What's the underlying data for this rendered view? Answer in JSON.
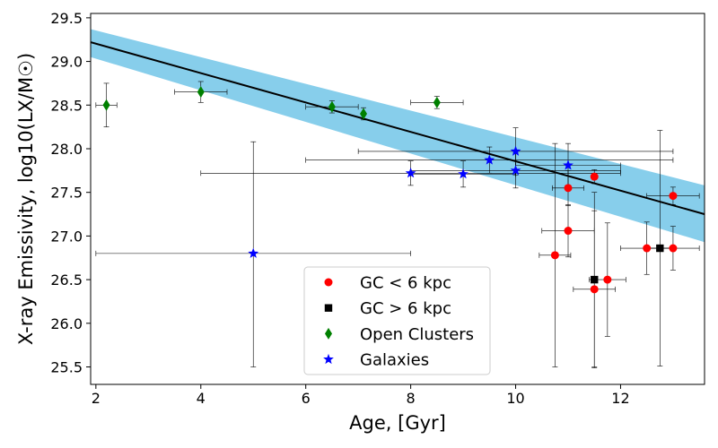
{
  "chart_data": {
    "type": "scatter",
    "title": "",
    "xlabel": "Age, [Gyr]",
    "ylabel": "X-ray Emissivity, log10(LX/M☉)",
    "xlim": [
      1.9,
      13.6
    ],
    "ylim": [
      25.3,
      29.55
    ],
    "xticks": [
      "2",
      "4",
      "6",
      "8",
      "10",
      "12"
    ],
    "yticks": [
      "25.5",
      "26.0",
      "26.5",
      "27.0",
      "27.5",
      "28.0",
      "28.5",
      "29.0",
      "29.5"
    ],
    "fit_line": {
      "x": [
        1.9,
        13.6
      ],
      "y": [
        29.22,
        27.25
      ]
    },
    "fit_band": {
      "x": [
        1.9,
        13.6
      ],
      "upper": [
        29.37,
        27.58
      ],
      "lower": [
        29.05,
        26.93
      ],
      "color": "#87ceeb"
    },
    "legend_position": "lower-center",
    "series": [
      {
        "name": "GC < 6 kpc",
        "marker": "circle",
        "color": "#ff0000",
        "points": [
          {
            "x": 10.75,
            "y": 26.78,
            "xerr": [
              0.3,
              0.3
            ],
            "yerr": [
              1.28,
              1.28
            ]
          },
          {
            "x": 11.0,
            "y": 27.55,
            "xerr": [
              0.3,
              0.3
            ],
            "yerr": [
              0.2,
              0.2
            ]
          },
          {
            "x": 11.0,
            "y": 27.06,
            "xerr": [
              0.5,
              0.5
            ],
            "yerr": [
              0.3,
              0.3
            ]
          },
          {
            "x": 11.5,
            "y": 27.68,
            "xerr": [
              0.0,
              0.0
            ],
            "yerr": [
              0.08,
              0.08
            ]
          },
          {
            "x": 11.5,
            "y": 26.39,
            "xerr": [
              0.4,
              0.4
            ],
            "yerr": [
              0.9,
              0.9
            ]
          },
          {
            "x": 11.75,
            "y": 26.5,
            "xerr": [
              0.35,
              0.35
            ],
            "yerr": [
              0.65,
              0.65
            ]
          },
          {
            "x": 12.5,
            "y": 26.86,
            "xerr": [
              0.5,
              0.5
            ],
            "yerr": [
              0.3,
              0.3
            ]
          },
          {
            "x": 13.0,
            "y": 27.46,
            "xerr": [
              0.5,
              0.5
            ],
            "yerr": [
              0.1,
              0.1
            ]
          },
          {
            "x": 13.0,
            "y": 26.86,
            "xerr": [
              0.5,
              0.5
            ],
            "yerr": [
              0.25,
              0.25
            ]
          }
        ]
      },
      {
        "name": "GC > 6 kpc",
        "marker": "square",
        "color": "#000000",
        "points": [
          {
            "x": 11.5,
            "y": 26.5,
            "xerr": [
              0.0,
              0.0
            ],
            "yerr": [
              1.0,
              1.0
            ]
          },
          {
            "x": 12.75,
            "y": 26.86,
            "xerr": [
              0.25,
              0.25
            ],
            "yerr": [
              1.35,
              1.35
            ]
          }
        ]
      },
      {
        "name": "Open Clusters",
        "marker": "diamond",
        "color": "#008000",
        "points": [
          {
            "x": 2.2,
            "y": 28.5,
            "xerr": [
              0.2,
              0.2
            ],
            "yerr": [
              0.25,
              0.25
            ]
          },
          {
            "x": 4.0,
            "y": 28.65,
            "xerr": [
              0.5,
              0.5
            ],
            "yerr": [
              0.12,
              0.12
            ]
          },
          {
            "x": 6.5,
            "y": 28.48,
            "xerr": [
              0.5,
              0.5
            ],
            "yerr": [
              0.07,
              0.07
            ]
          },
          {
            "x": 7.1,
            "y": 28.4,
            "xerr": [
              0.0,
              0.0
            ],
            "yerr": [
              0.07,
              0.07
            ]
          },
          {
            "x": 8.5,
            "y": 28.53,
            "xerr": [
              0.5,
              0.5
            ],
            "yerr": [
              0.07,
              0.07
            ]
          }
        ]
      },
      {
        "name": "Galaxies",
        "marker": "star",
        "color": "#0000ff",
        "points": [
          {
            "x": 5.0,
            "y": 26.8,
            "xerr": [
              3.0,
              3.0
            ],
            "yerr": [
              1.3,
              1.28
            ]
          },
          {
            "x": 8.0,
            "y": 27.72,
            "xerr": [
              4.0,
              4.0
            ],
            "yerr": [
              0.14,
              0.14
            ]
          },
          {
            "x": 9.0,
            "y": 27.71,
            "xerr": [
              1.0,
              1.0
            ],
            "yerr": [
              0.15,
              0.15
            ]
          },
          {
            "x": 9.5,
            "y": 27.87,
            "xerr": [
              3.5,
              3.5
            ],
            "yerr": [
              0.15,
              0.15
            ]
          },
          {
            "x": 10.0,
            "y": 27.97,
            "xerr": [
              3.0,
              3.0
            ],
            "yerr": [
              0.27,
              0.27
            ]
          },
          {
            "x": 10.0,
            "y": 27.75,
            "xerr": [
              2.0,
              2.0
            ],
            "yerr": [
              0.2,
              0.2
            ]
          },
          {
            "x": 11.0,
            "y": 27.81,
            "xerr": [
              1.0,
              1.0
            ],
            "yerr": [
              0.25,
              0.25
            ]
          }
        ]
      }
    ]
  }
}
